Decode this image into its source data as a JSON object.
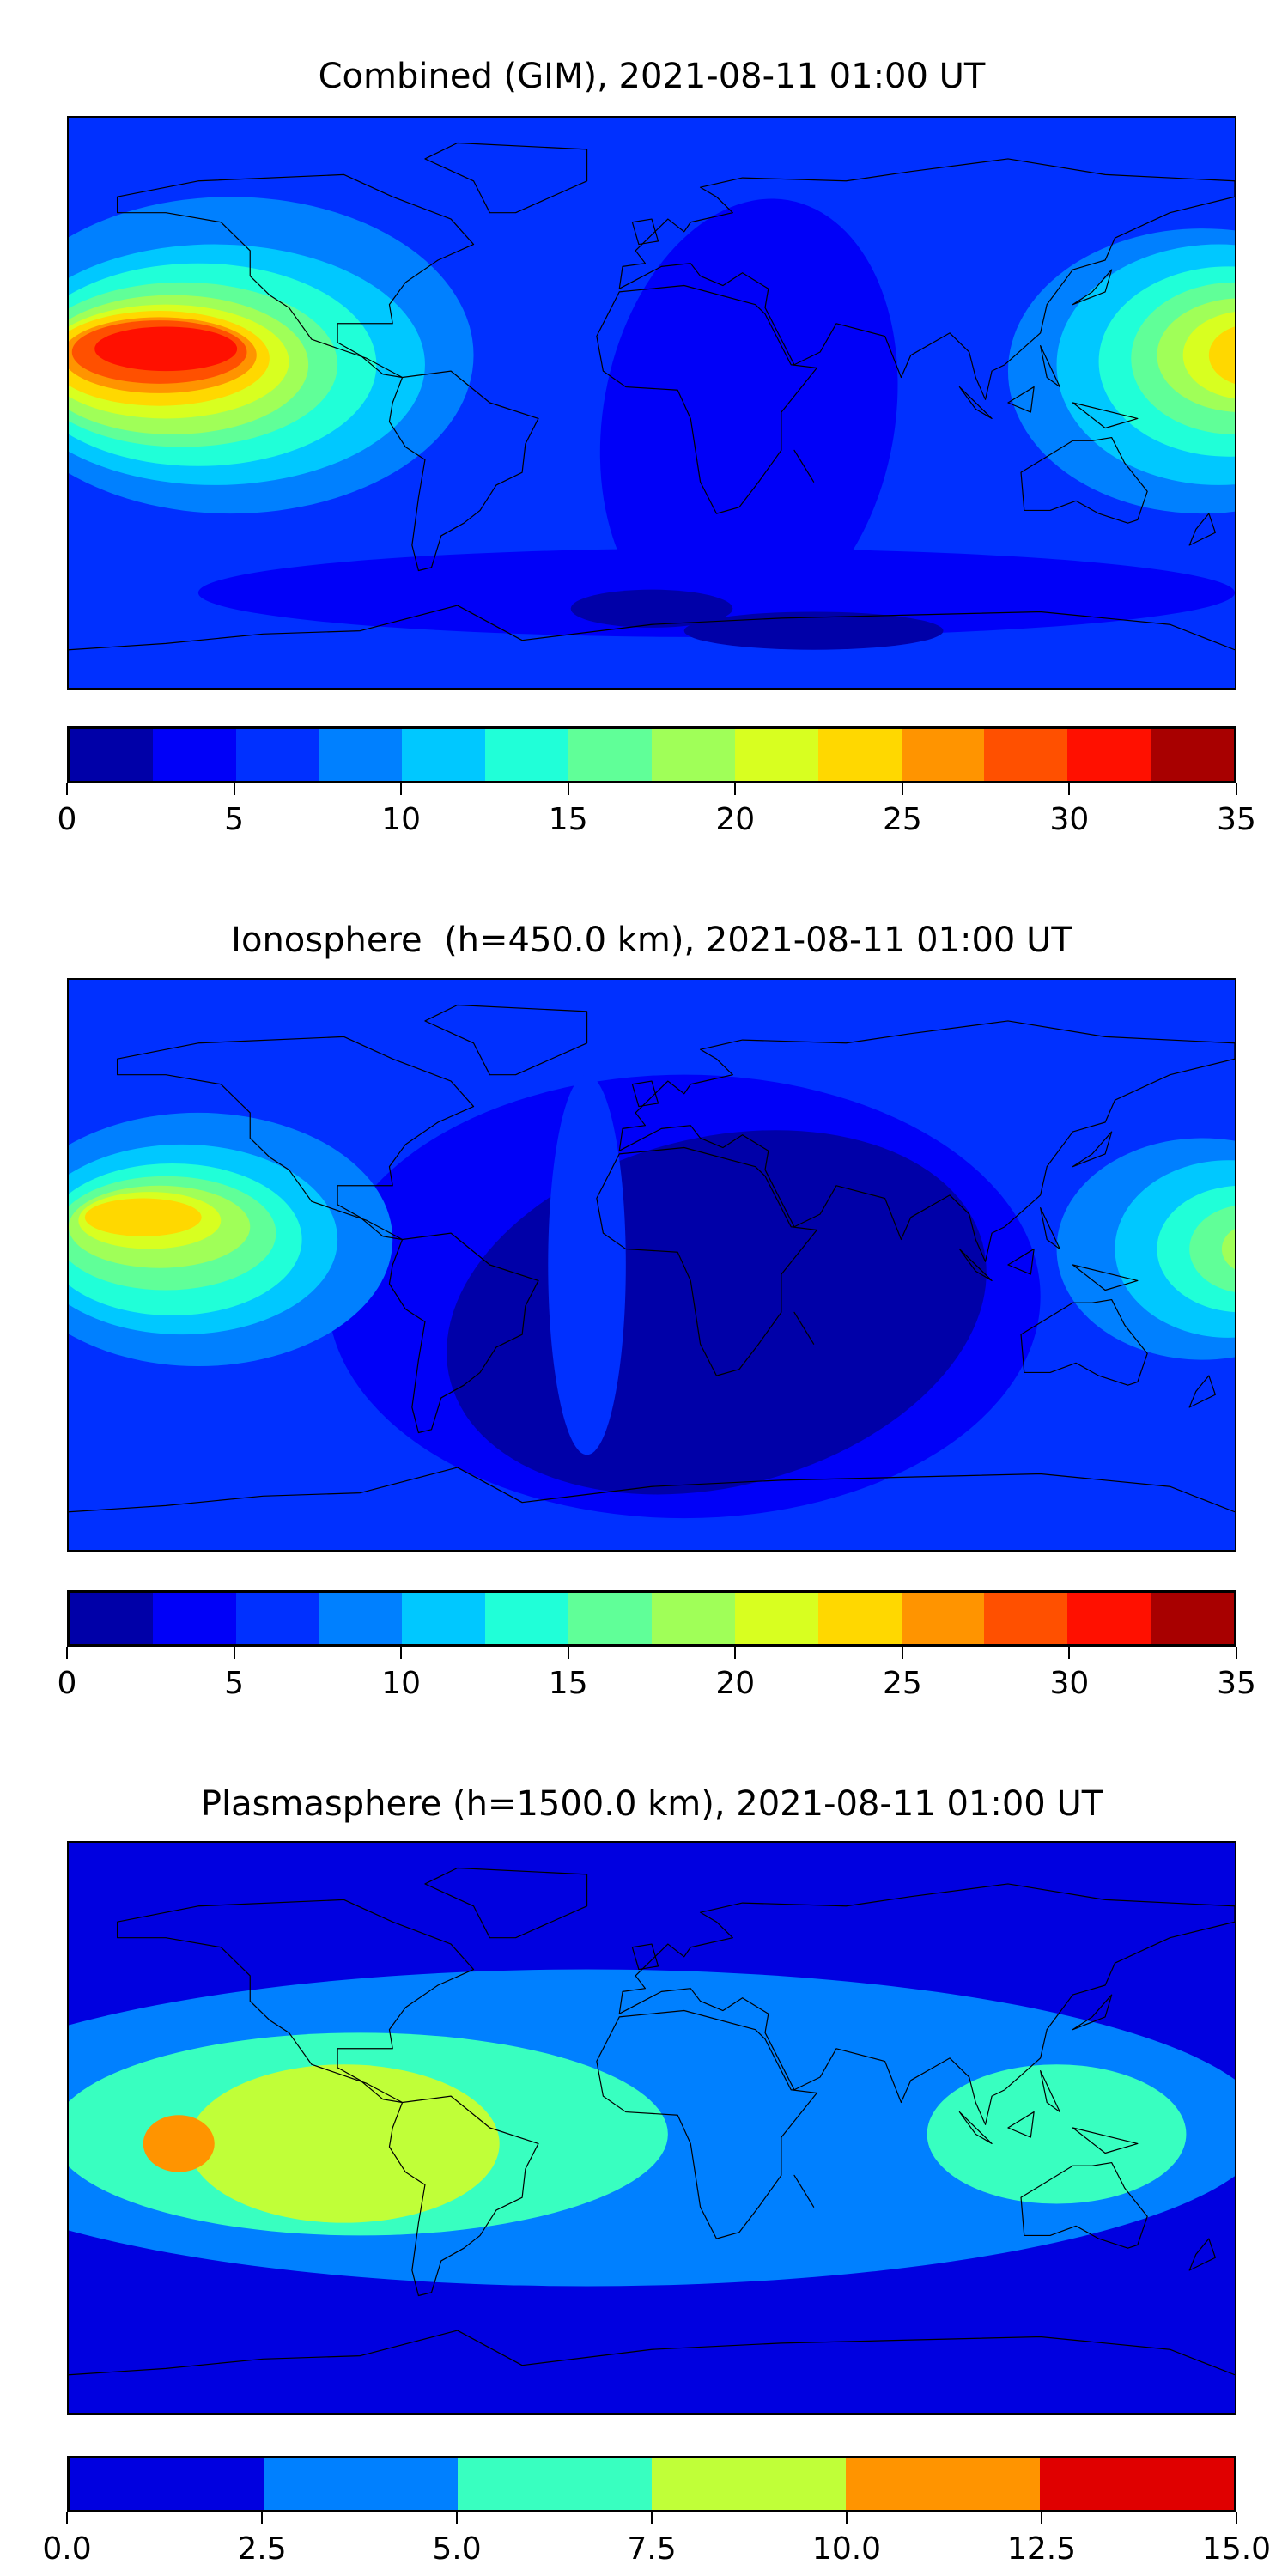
{
  "chart_data": [
    {
      "type": "heatmap",
      "title": "Combined (GIM), 2021-08-11 01:00 UT",
      "levels": [
        0,
        2.5,
        5,
        7.5,
        10,
        12.5,
        15,
        17.5,
        20,
        22.5,
        25,
        27.5,
        30,
        32.5,
        35
      ],
      "colors": [
        "#0000a8",
        "#0000f8",
        "#0030ff",
        "#0080ff",
        "#00c8ff",
        "#20ffd8",
        "#60ff98",
        "#a0ff58",
        "#d8ff20",
        "#ffd800",
        "#ff9400",
        "#ff5000",
        "#ff1000",
        "#a80000"
      ],
      "ticks": [
        "0",
        "5",
        "10",
        "15",
        "20",
        "25",
        "30",
        "35"
      ],
      "tick_values": [
        0,
        5,
        10,
        15,
        20,
        25,
        30,
        35
      ],
      "range": [
        0,
        35
      ]
    },
    {
      "type": "heatmap",
      "title": "Ionosphere  (h=450.0 km), 2021-08-11 01:00 UT",
      "levels": [
        0,
        2.5,
        5,
        7.5,
        10,
        12.5,
        15,
        17.5,
        20,
        22.5,
        25,
        27.5,
        30,
        32.5,
        35
      ],
      "colors": [
        "#0000a8",
        "#0000f8",
        "#0030ff",
        "#0080ff",
        "#00c8ff",
        "#20ffd8",
        "#60ff98",
        "#a0ff58",
        "#d8ff20",
        "#ffd800",
        "#ff9400",
        "#ff5000",
        "#ff1000",
        "#a80000"
      ],
      "ticks": [
        "0",
        "5",
        "10",
        "15",
        "20",
        "25",
        "30",
        "35"
      ],
      "tick_values": [
        0,
        5,
        10,
        15,
        20,
        25,
        30,
        35
      ],
      "range": [
        0,
        35
      ]
    },
    {
      "type": "heatmap",
      "title": "Plasmasphere (h=1500.0 km), 2021-08-11 01:00 UT",
      "levels": [
        0,
        2.5,
        5,
        7.5,
        10,
        12.5,
        15
      ],
      "colors": [
        "#0000e0",
        "#0080ff",
        "#38ffc0",
        "#c0ff38",
        "#ff9400",
        "#e00000"
      ],
      "ticks": [
        "0.0",
        "2.5",
        "5.0",
        "7.5",
        "10.0",
        "12.5",
        "15.0"
      ],
      "tick_values": [
        0,
        2.5,
        5,
        7.5,
        10,
        12.5,
        15
      ],
      "range": [
        0,
        15
      ]
    }
  ]
}
